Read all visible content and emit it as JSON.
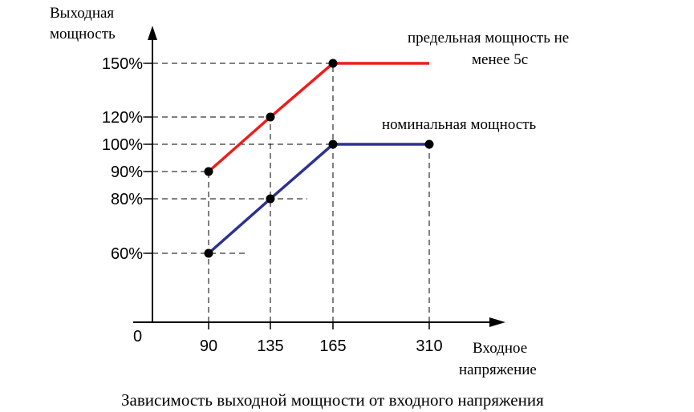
{
  "chart_data": {
    "type": "line",
    "caption": "Зависимость выходной мощности от входного напряжения",
    "ylabel_line1": "Выходная",
    "ylabel_line2": "мощность",
    "xlabel_line1": "Входное",
    "xlabel_line2": "напряжение",
    "origin_label": "0",
    "x_ticks": [
      {
        "value": 90,
        "label": "90"
      },
      {
        "value": 135,
        "label": "135"
      },
      {
        "value": 165,
        "label": "165"
      },
      {
        "value": 310,
        "label": "310"
      }
    ],
    "y_ticks": [
      {
        "value": 60,
        "label": "60%"
      },
      {
        "value": 80,
        "label": "80%"
      },
      {
        "value": 90,
        "label": "90%"
      },
      {
        "value": 100,
        "label": "100%"
      },
      {
        "value": 120,
        "label": "120%"
      },
      {
        "value": 150,
        "label": "150%"
      }
    ],
    "series": [
      {
        "name_line1": "предельная мощность не",
        "name_line2": "менее 5с",
        "color": "#ee1c1c",
        "points": [
          [
            90,
            90
          ],
          [
            135,
            120
          ],
          [
            165,
            150
          ]
        ],
        "tail": [
          [
            165,
            150
          ],
          [
            310,
            150
          ]
        ]
      },
      {
        "name_line1": "номинальная мощность",
        "name_line2": "",
        "color": "#2e3192",
        "points": [
          [
            90,
            60
          ],
          [
            135,
            80
          ],
          [
            165,
            100
          ],
          [
            310,
            100
          ]
        ],
        "tail": []
      }
    ],
    "marker_color": "#000000",
    "grid": "dashed guide lines",
    "legend": "inline labels"
  }
}
